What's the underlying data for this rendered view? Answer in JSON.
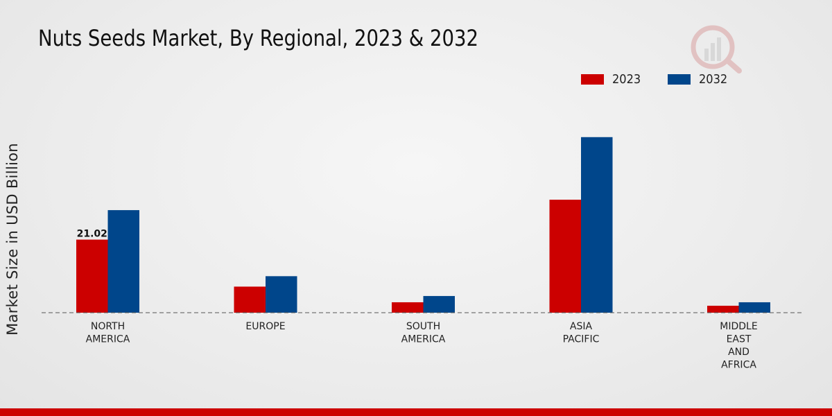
{
  "chart_data": {
    "type": "bar",
    "title": "Nuts Seeds Market, By Regional, 2023 & 2032",
    "ylabel": "Market Size in USD Billion",
    "xlabel": "",
    "categories": [
      [
        "NORTH",
        "AMERICA"
      ],
      [
        "EUROPE"
      ],
      [
        "SOUTH",
        "AMERICA"
      ],
      [
        "ASIA",
        "PACIFIC"
      ],
      [
        "MIDDLE",
        "EAST",
        "AND",
        "AFRICA"
      ]
    ],
    "series": [
      {
        "name": "2023",
        "color": "#cc0000",
        "values": [
          21.02,
          7.5,
          3.0,
          32.5,
          2.0
        ]
      },
      {
        "name": "2032",
        "color": "#00468b",
        "values": [
          29.5,
          10.5,
          4.8,
          50.5,
          3.0
        ]
      }
    ],
    "data_labels": [
      {
        "series": 0,
        "index": 0,
        "text": "21.02"
      }
    ],
    "ylim": [
      0,
      70
    ],
    "grid": false,
    "legend_position": "top-right"
  }
}
